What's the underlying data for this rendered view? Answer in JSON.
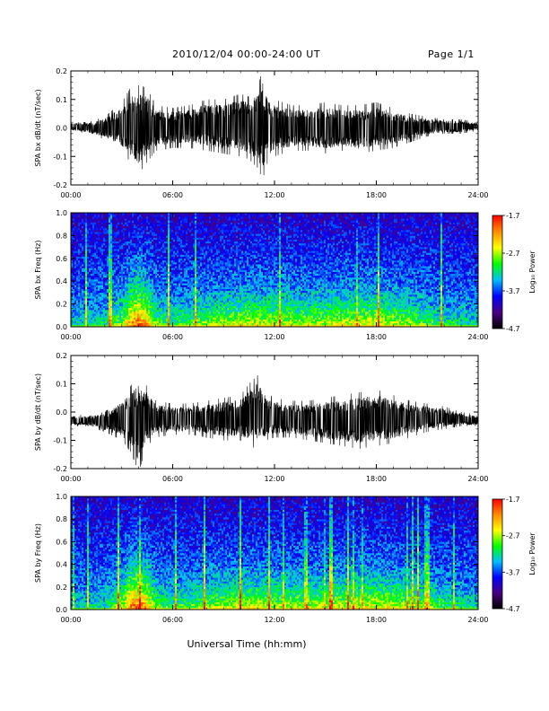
{
  "header": {
    "title": "2010/12/04  00:00-24:00 UT",
    "page": "Page 1/1"
  },
  "xlabel": "Universal Time (hh:mm)",
  "colorbar": {
    "label": "Log₁₀ Power",
    "ticks": [
      "-1.7",
      "-2.7",
      "-3.7",
      "-4.7"
    ],
    "range": [
      -4.7,
      -1.7
    ],
    "colors": [
      "#000000",
      "#4b0082",
      "#0000ff",
      "#00bfff",
      "#00ff00",
      "#ffff00",
      "#ff8c00",
      "#ff0000"
    ]
  },
  "chart_data": [
    {
      "type": "line",
      "title": "",
      "ylabel": "SPA bx dB/dt (nT/sec)",
      "xlim": [
        "00:00",
        "24:00"
      ],
      "ylim": [
        -0.2,
        0.2
      ],
      "xticks": [
        "00:00",
        "06:00",
        "12:00",
        "18:00",
        "24:00"
      ],
      "yticks": [
        "-0.2",
        "-0.1",
        "0.0",
        "0.1",
        "0.2"
      ],
      "envelope": {
        "x_hours": [
          0,
          1,
          2,
          3,
          3.5,
          4,
          4.5,
          5,
          6,
          7,
          8,
          9,
          10,
          10.5,
          11,
          11.3,
          11.6,
          12,
          13,
          14,
          15,
          16,
          17,
          18,
          19,
          20,
          21,
          22,
          23,
          24
        ],
        "max": [
          0.02,
          0.02,
          0.04,
          0.09,
          0.14,
          0.15,
          0.14,
          0.08,
          0.07,
          0.08,
          0.1,
          0.1,
          0.12,
          0.11,
          0.15,
          0.2,
          0.12,
          0.1,
          0.08,
          0.08,
          0.09,
          0.08,
          0.08,
          0.09,
          0.07,
          0.05,
          0.04,
          0.03,
          0.03,
          0.02
        ],
        "min": [
          -0.01,
          -0.02,
          -0.04,
          -0.08,
          -0.12,
          -0.16,
          -0.12,
          -0.08,
          -0.07,
          -0.07,
          -0.08,
          -0.09,
          -0.1,
          -0.11,
          -0.14,
          -0.18,
          -0.12,
          -0.1,
          -0.08,
          -0.08,
          -0.09,
          -0.08,
          -0.09,
          -0.08,
          -0.07,
          -0.05,
          -0.03,
          -0.02,
          -0.02,
          -0.01
        ]
      }
    },
    {
      "type": "heatmap",
      "title": "",
      "ylabel": "SPA bx Freq (Hz)",
      "xlim": [
        "00:00",
        "24:00"
      ],
      "ylim": [
        0.0,
        1.0
      ],
      "xticks": [
        "00:00",
        "06:00",
        "12:00",
        "18:00",
        "24:00"
      ],
      "yticks": [
        "0.0",
        "0.2",
        "0.4",
        "0.6",
        "0.8",
        "1.0"
      ],
      "z_label": "Log₁₀ Power",
      "z_range": [
        -4.7,
        -1.7
      ],
      "activity": {
        "x_hours": [
          0,
          2,
          3,
          3.5,
          4,
          4.5,
          5,
          6,
          8,
          10,
          12,
          14,
          16,
          18,
          20,
          22,
          24
        ],
        "level": [
          0.15,
          0.25,
          0.5,
          0.85,
          1.0,
          0.85,
          0.45,
          0.35,
          0.5,
          0.6,
          0.6,
          0.55,
          0.6,
          0.65,
          0.5,
          0.3,
          0.2
        ]
      }
    },
    {
      "type": "line",
      "title": "",
      "ylabel": "SPA by dB/dt (nT/sec)",
      "xlim": [
        "00:00",
        "24:00"
      ],
      "ylim": [
        -0.2,
        0.2
      ],
      "xticks": [
        "00:00",
        "06:00",
        "12:00",
        "18:00",
        "24:00"
      ],
      "yticks": [
        "-0.2",
        "-0.1",
        "0.0",
        "0.1",
        "0.2"
      ],
      "envelope": {
        "x_hours": [
          0,
          1,
          2,
          3,
          3.5,
          4,
          4.5,
          5,
          6,
          7,
          8,
          9,
          10,
          10.5,
          11,
          11.5,
          12,
          13,
          14,
          15,
          16,
          17,
          18,
          19,
          20,
          21,
          22,
          23,
          24
        ],
        "max": [
          -0.01,
          -0.01,
          0.0,
          0.05,
          0.09,
          0.13,
          0.09,
          0.04,
          0.03,
          0.03,
          0.04,
          0.05,
          0.06,
          0.1,
          0.13,
          0.07,
          0.05,
          0.04,
          0.04,
          0.05,
          0.06,
          0.07,
          0.08,
          0.06,
          0.04,
          0.03,
          0.02,
          0.0,
          -0.01
        ],
        "min": [
          -0.05,
          -0.05,
          -0.07,
          -0.1,
          -0.14,
          -0.21,
          -0.12,
          -0.09,
          -0.08,
          -0.08,
          -0.09,
          -0.1,
          -0.1,
          -0.12,
          -0.13,
          -0.1,
          -0.09,
          -0.09,
          -0.1,
          -0.11,
          -0.12,
          -0.13,
          -0.12,
          -0.11,
          -0.09,
          -0.07,
          -0.06,
          -0.05,
          -0.05
        ]
      }
    },
    {
      "type": "heatmap",
      "title": "",
      "ylabel": "SPA by Freq (Hz)",
      "xlim": [
        "00:00",
        "24:00"
      ],
      "ylim": [
        0.0,
        1.0
      ],
      "xticks": [
        "00:00",
        "06:00",
        "12:00",
        "18:00",
        "24:00"
      ],
      "yticks": [
        "0.0",
        "0.2",
        "0.4",
        "0.6",
        "0.8",
        "1.0"
      ],
      "z_label": "Log₁₀ Power",
      "z_range": [
        -4.7,
        -1.7
      ],
      "activity": {
        "x_hours": [
          0,
          2,
          3,
          3.5,
          4,
          4.5,
          5,
          6,
          8,
          10,
          12,
          14,
          16,
          18,
          20,
          22,
          24
        ],
        "level": [
          0.15,
          0.25,
          0.55,
          0.9,
          1.0,
          0.85,
          0.45,
          0.35,
          0.5,
          0.6,
          0.55,
          0.55,
          0.6,
          0.65,
          0.55,
          0.35,
          0.2
        ]
      }
    }
  ]
}
